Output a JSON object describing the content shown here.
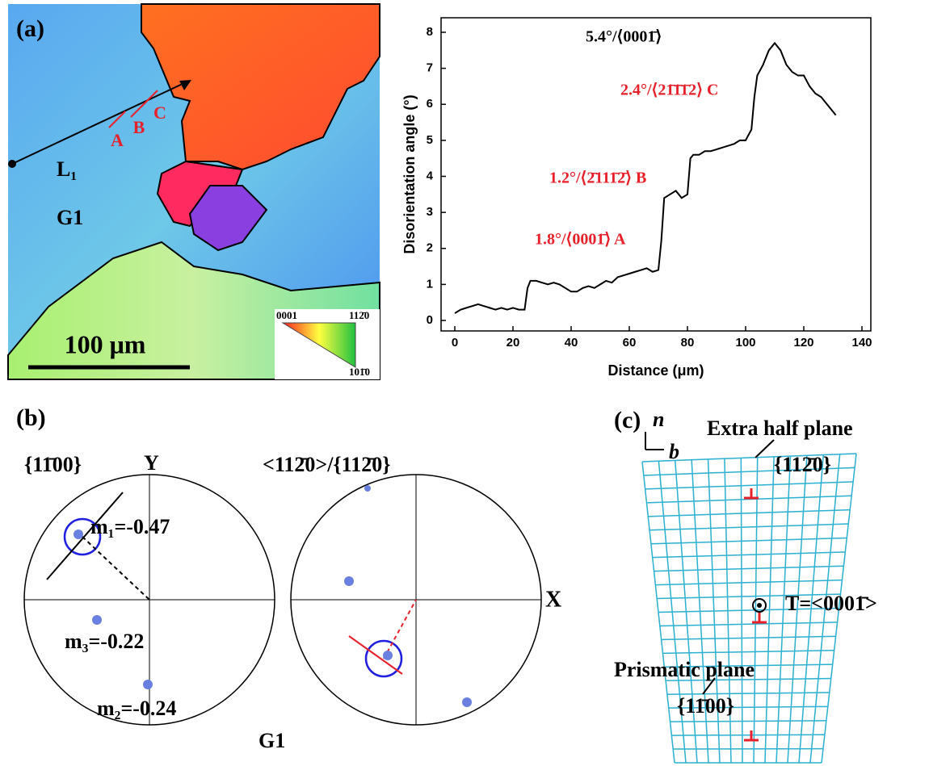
{
  "panels": {
    "a": "(a)",
    "b": "(b)",
    "c": "(c)"
  },
  "ebsd": {
    "points": [
      "A",
      "B",
      "C"
    ],
    "line": "L₁",
    "grain": "G1",
    "scale": "100 μm",
    "key": [
      "0001",
      "112̄0",
      "101̄0"
    ]
  },
  "chart_data": {
    "type": "line",
    "xlabel": "Distance (μm)",
    "ylabel": "Disorientation angle (°)",
    "xlim": [
      0,
      140
    ],
    "ylim": [
      0,
      8
    ],
    "xticks": [
      0,
      20,
      40,
      60,
      80,
      100,
      120,
      140
    ],
    "yticks": [
      0,
      1,
      2,
      3,
      4,
      5,
      6,
      7,
      8
    ],
    "annotations": [
      "5.4°/⟨0001̄⟩",
      "2.4°/⟨21̄1̄1̄2⟩ C",
      "1.2°/⟨2̄111̄2̄⟩ B",
      "1.8°/⟨0001̄⟩ A"
    ],
    "x": [
      0,
      2,
      4,
      6,
      8,
      10,
      12,
      14,
      16,
      18,
      20,
      22,
      24,
      25,
      26,
      28,
      30,
      32,
      34,
      36,
      38,
      40,
      42,
      44,
      46,
      48,
      50,
      52,
      54,
      56,
      58,
      60,
      62,
      64,
      66,
      68,
      70,
      71,
      72,
      74,
      76,
      78,
      80,
      81,
      82,
      84,
      86,
      88,
      90,
      92,
      94,
      96,
      98,
      100,
      102,
      103,
      104,
      106,
      108,
      110,
      112,
      114,
      116,
      118,
      120,
      122,
      124,
      126,
      128,
      130,
      131
    ],
    "series": [
      {
        "color": "#000000",
        "values": [
          0.2,
          0.3,
          0.35,
          0.4,
          0.45,
          0.4,
          0.35,
          0.3,
          0.35,
          0.3,
          0.35,
          0.3,
          0.3,
          0.9,
          1.1,
          1.1,
          1.05,
          1.0,
          1.05,
          1.0,
          0.9,
          0.8,
          0.8,
          0.9,
          0.95,
          0.9,
          1.0,
          1.1,
          1.05,
          1.2,
          1.25,
          1.3,
          1.35,
          1.4,
          1.45,
          1.35,
          1.4,
          2.2,
          3.4,
          3.5,
          3.6,
          3.4,
          3.5,
          4.5,
          4.6,
          4.6,
          4.7,
          4.7,
          4.75,
          4.8,
          4.85,
          4.9,
          5.0,
          5.0,
          5.3,
          6.2,
          6.8,
          7.1,
          7.5,
          7.7,
          7.5,
          7.1,
          6.9,
          6.8,
          6.8,
          6.5,
          6.3,
          6.2,
          6.0,
          5.8,
          5.7
        ]
      }
    ]
  },
  "pole_figures": {
    "left_title": "{11̄00}",
    "y_axis": "Y",
    "m1": "m₁=-0.47",
    "m3": "m₃=-0.22",
    "m2": "m₂=-0.24",
    "right_title": "<112̄0>/{112̄0}",
    "x_axis": "X",
    "grain": "G1"
  },
  "dislocation": {
    "n": "n⃗",
    "b": "b⃗",
    "extra": "Extra half plane",
    "extra_plane": "{112̄0}",
    "line": "T=<0001̄>",
    "prismatic": "Prismatic plane",
    "prismatic_plane": "{11̄00}"
  }
}
